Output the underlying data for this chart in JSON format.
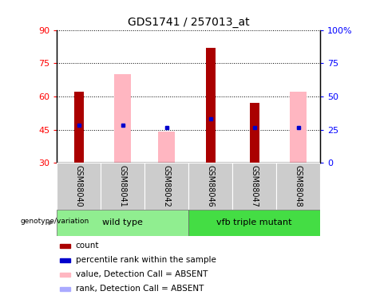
{
  "title": "GDS1741 / 257013_at",
  "samples": [
    "GSM88040",
    "GSM88041",
    "GSM88042",
    "GSM88046",
    "GSM88047",
    "GSM88048"
  ],
  "ylim_left": [
    30,
    90
  ],
  "ylim_right": [
    0,
    100
  ],
  "yticks_left": [
    30,
    45,
    60,
    75,
    90
  ],
  "yticks_right": [
    0,
    25,
    50,
    75,
    100
  ],
  "ytick_labels_right": [
    "0",
    "25",
    "50",
    "75",
    "100%"
  ],
  "red_bar_tops": [
    62,
    30,
    30,
    82,
    57,
    30
  ],
  "pink_bar_tops": [
    30,
    70,
    44,
    30,
    30,
    62
  ],
  "blue_square_y": [
    47,
    47,
    46,
    50,
    46,
    46
  ],
  "lightblue_square_y": [
    -1,
    47,
    46,
    -1,
    -1,
    46
  ],
  "bar_bottom": 30,
  "red_color": "#AA0000",
  "pink_color": "#FFB6C1",
  "blue_color": "#0000CC",
  "lightblue_color": "#AAAAFF",
  "wild_type_color": "#90EE90",
  "vfb_color": "#44DD44",
  "legend_items": [
    {
      "color": "#AA0000",
      "label": "count"
    },
    {
      "color": "#0000CC",
      "label": "percentile rank within the sample"
    },
    {
      "color": "#FFB6C1",
      "label": "value, Detection Call = ABSENT"
    },
    {
      "color": "#AAAAFF",
      "label": "rank, Detection Call = ABSENT"
    }
  ],
  "genotype_label": "genotype/variation",
  "title_fontsize": 10,
  "tick_fontsize": 8,
  "sample_fontsize": 7,
  "group_fontsize": 8,
  "legend_fontsize": 7.5
}
